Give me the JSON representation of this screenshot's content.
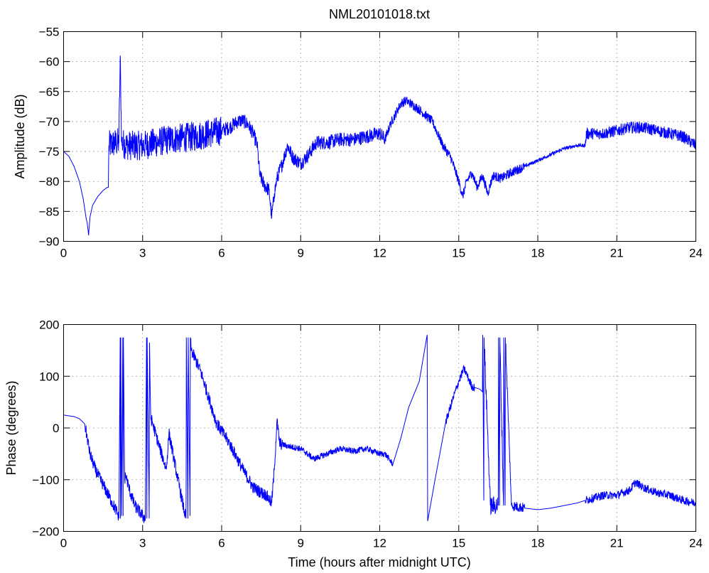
{
  "title": "NML20101018.txt",
  "colors": {
    "series": "#0000ff",
    "axes": "#000000",
    "grid": "#444444",
    "background": "#ffffff"
  },
  "chart_data": [
    {
      "type": "line",
      "title": "NML20101018.txt",
      "xlabel": "",
      "ylabel": "Amplitude (dB)",
      "xlim": [
        0,
        24
      ],
      "ylim": [
        -90,
        -55
      ],
      "xticks": [
        0,
        3,
        6,
        9,
        12,
        15,
        18,
        21,
        24
      ],
      "yticks": [
        -90,
        -85,
        -80,
        -75,
        -70,
        -65,
        -60,
        -55
      ],
      "xtick_labels": [
        "0",
        "3",
        "6",
        "9",
        "12",
        "15",
        "18",
        "21",
        "24"
      ],
      "ytick_labels": [
        "−90",
        "−85",
        "−80",
        "−75",
        "−70",
        "−65",
        "−60",
        "−55"
      ],
      "grid": true,
      "series": [
        {
          "color": "#0000ff",
          "noisy_segments": [
            [
              1.7,
              6.0,
              2.5
            ],
            [
              6.0,
              12.2,
              1.2
            ],
            [
              12.2,
              17.5,
              0.8
            ],
            [
              17.5,
              19.8,
              0.3
            ],
            [
              19.8,
              24.0,
              1.0
            ]
          ],
          "x": [
            0.0,
            0.2,
            0.4,
            0.6,
            0.75,
            0.85,
            0.9,
            0.95,
            1.0,
            1.1,
            1.3,
            1.5,
            1.65,
            1.7,
            1.72,
            2.0,
            2.1,
            2.15,
            2.2,
            2.4,
            3.0,
            4.0,
            5.0,
            5.5,
            6.0,
            6.3,
            6.6,
            6.8,
            7.0,
            7.2,
            7.35,
            7.45,
            7.6,
            7.8,
            7.9,
            8.0,
            8.1,
            8.3,
            8.5,
            8.7,
            9.0,
            9.3,
            9.6,
            10.0,
            10.5,
            11.0,
            11.5,
            12.0,
            12.2,
            12.4,
            12.8,
            13.0,
            13.5,
            14.0,
            14.4,
            14.7,
            15.0,
            15.15,
            15.3,
            15.5,
            15.7,
            15.9,
            16.1,
            16.3,
            16.6,
            17.0,
            17.5,
            18.0,
            18.5,
            19.0,
            19.5,
            19.8,
            19.85,
            20.5,
            21.0,
            21.5,
            22.0,
            22.5,
            23.0,
            23.5,
            24.0
          ],
          "y": [
            -75,
            -75.8,
            -77.5,
            -80,
            -83,
            -86,
            -87,
            -89,
            -86,
            -84,
            -82.5,
            -81.5,
            -81,
            -81,
            -74,
            -73.5,
            -73.5,
            -59,
            -73.5,
            -74,
            -74,
            -73,
            -72.5,
            -72,
            -71.5,
            -71,
            -70,
            -69.8,
            -70.5,
            -72,
            -74,
            -79,
            -80.5,
            -81.5,
            -86,
            -82,
            -79.5,
            -77,
            -74,
            -76,
            -77,
            -75.5,
            -73.5,
            -73.5,
            -73,
            -73,
            -72.5,
            -72,
            -73,
            -70.5,
            -67,
            -66.5,
            -68,
            -70,
            -74,
            -76,
            -80,
            -82.5,
            -80,
            -78.5,
            -81,
            -79,
            -82,
            -79,
            -79.5,
            -78.5,
            -77.5,
            -76.5,
            -75.5,
            -74.5,
            -74,
            -74,
            -72,
            -72,
            -71.5,
            -71,
            -71,
            -71.5,
            -72,
            -72.5,
            -74
          ]
        }
      ]
    },
    {
      "type": "line",
      "title": "",
      "xlabel": "Time (hours after midnight UTC)",
      "ylabel": "Phase (degrees)",
      "xlim": [
        0,
        24
      ],
      "ylim": [
        -200,
        200
      ],
      "xticks": [
        0,
        3,
        6,
        9,
        12,
        15,
        18,
        21,
        24
      ],
      "yticks": [
        -200,
        -100,
        0,
        100,
        200
      ],
      "xtick_labels": [
        "0",
        "3",
        "6",
        "9",
        "12",
        "15",
        "18",
        "21",
        "24"
      ],
      "ytick_labels": [
        "−200",
        "−100",
        "0",
        "100",
        "200"
      ],
      "grid": true,
      "series": [
        {
          "color": "#0000ff",
          "noisy_segments": [
            [
              0.8,
              8.3,
              12
            ],
            [
              8.3,
              12.5,
              6
            ],
            [
              14.5,
              15.6,
              8
            ],
            [
              15.9,
              16.8,
              18
            ],
            [
              16.8,
              17.5,
              10
            ],
            [
              19.8,
              24.0,
              8
            ]
          ],
          "x": [
            0.0,
            0.4,
            0.6,
            0.8,
            0.9,
            1.0,
            1.2,
            1.5,
            1.8,
            2.0,
            2.1,
            2.15,
            2.16,
            2.17,
            2.2,
            2.25,
            2.26,
            2.27,
            2.32,
            2.35,
            2.5,
            2.7,
            3.0,
            3.1,
            3.15,
            3.16,
            3.17,
            3.25,
            3.26,
            3.3,
            3.31,
            3.6,
            3.9,
            4.0,
            4.3,
            4.6,
            4.65,
            4.66,
            4.72,
            4.73,
            4.8,
            4.81,
            4.85,
            5.2,
            5.8,
            6.3,
            6.8,
            7.2,
            7.5,
            7.7,
            7.9,
            8.0,
            8.1,
            8.2,
            8.5,
            9.0,
            9.5,
            10.0,
            10.5,
            11.0,
            11.5,
            12.0,
            12.2,
            12.5,
            12.8,
            13.1,
            13.5,
            13.8,
            13.82,
            14.1,
            14.5,
            14.8,
            15.0,
            15.2,
            15.5,
            15.8,
            15.9,
            15.91,
            15.95,
            15.96,
            16.2,
            16.5,
            16.51,
            16.55,
            16.56,
            16.7,
            16.71,
            16.76,
            16.77,
            17.0,
            17.5,
            18.0,
            18.5,
            19.0,
            19.5,
            19.8,
            20.5,
            21.0,
            21.5,
            21.7,
            22.0,
            22.5,
            23.0,
            23.5,
            24.0
          ],
          "y": [
            25,
            22,
            18,
            8,
            -20,
            -50,
            -80,
            -110,
            -140,
            -160,
            -175,
            175,
            -175,
            175,
            -170,
            175,
            -170,
            175,
            -100,
            -90,
            -120,
            -150,
            -170,
            -175,
            175,
            -175,
            175,
            -175,
            165,
            40,
            20,
            -30,
            -80,
            -10,
            -90,
            -165,
            -175,
            175,
            -175,
            175,
            -170,
            175,
            150,
            110,
            10,
            -30,
            -80,
            -115,
            -125,
            -130,
            -145,
            -80,
            15,
            -30,
            -35,
            -40,
            -60,
            -50,
            -40,
            -45,
            -40,
            -50,
            -50,
            -70,
            -20,
            40,
            90,
            180,
            -180,
            -100,
            10,
            60,
            90,
            115,
            80,
            75,
            70,
            180,
            -140,
            175,
            -150,
            -150,
            175,
            -150,
            175,
            -150,
            175,
            -150,
            175,
            -150,
            -155,
            -158,
            -155,
            -150,
            -145,
            -140,
            -130,
            -130,
            -120,
            -105,
            -115,
            -125,
            -130,
            -140,
            -145
          ]
        }
      ]
    }
  ]
}
